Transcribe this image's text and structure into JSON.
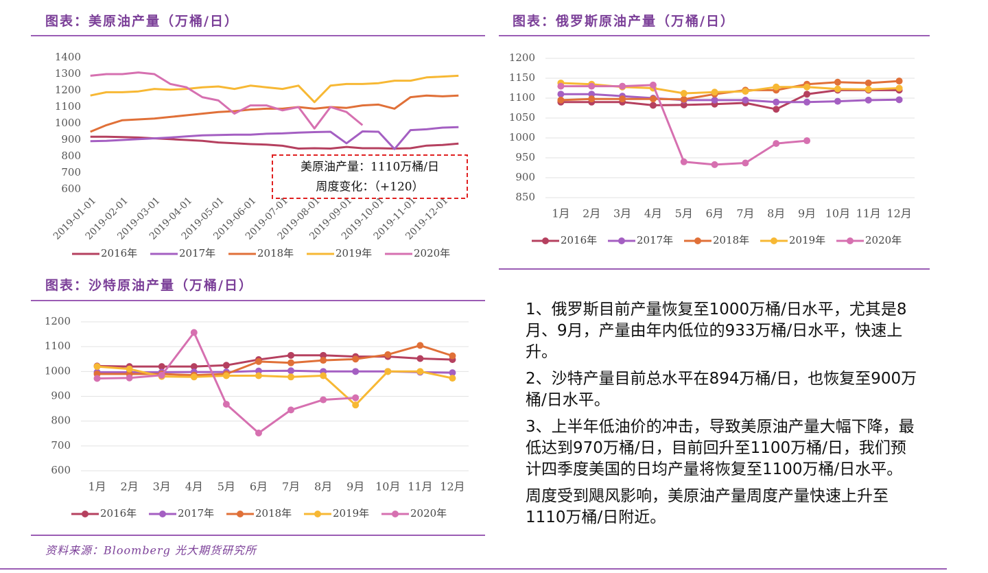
{
  "chart_data": [
    {
      "type": "line",
      "title": "图表：美原油产量（万桶/日）",
      "categories": [
        "2019-01-01",
        null,
        "2019-02-01",
        null,
        "2019-03-01",
        null,
        "2019-04-01",
        null,
        "2019-05-01",
        null,
        "2019-06-01",
        null,
        "2019-07-01",
        null,
        "2019-08-01",
        null,
        "2019-09-01",
        null,
        "2019-10-01",
        null,
        "2019-11-01",
        null,
        "2019-12-01",
        null
      ],
      "series": [
        {
          "name": "2016年",
          "color": "#b5405f",
          "values": [
            920,
            920,
            918,
            915,
            910,
            905,
            900,
            895,
            885,
            880,
            875,
            872,
            865,
            848,
            850,
            848,
            858,
            850,
            850,
            848,
            850,
            866,
            870,
            878
          ]
        },
        {
          "name": "2017年",
          "color": "#a45fc2",
          "values": [
            893,
            895,
            900,
            905,
            910,
            915,
            922,
            928,
            930,
            932,
            932,
            938,
            940,
            945,
            948,
            950,
            880,
            952,
            950,
            845,
            960,
            965,
            975,
            978
          ]
        },
        {
          "name": "2018年",
          "color": "#e07038",
          "values": [
            950,
            990,
            1020,
            1025,
            1030,
            1040,
            1050,
            1060,
            1070,
            1075,
            1085,
            1090,
            1090,
            1100,
            1090,
            1100,
            1095,
            1110,
            1115,
            1090,
            1160,
            1170,
            1165,
            1170
          ]
        },
        {
          "name": "2019年",
          "color": "#f7b834",
          "values": [
            1170,
            1190,
            1190,
            1195,
            1210,
            1205,
            1210,
            1220,
            1225,
            1210,
            1230,
            1220,
            1210,
            1230,
            1130,
            1230,
            1240,
            1240,
            1245,
            1260,
            1260,
            1280,
            1285,
            1290
          ]
        },
        {
          "name": "2020年",
          "color": "#d670b0",
          "values": [
            1290,
            1300,
            1300,
            1310,
            1300,
            1240,
            1220,
            1160,
            1140,
            1060,
            1110,
            1110,
            1080,
            1100,
            970,
            1100,
            1070,
            990,
            null,
            null,
            null,
            null,
            null,
            null
          ]
        }
      ],
      "ylim": [
        600,
        1400
      ],
      "yticks": [
        600,
        700,
        800,
        900,
        1000,
        1100,
        1200,
        1300,
        1400
      ],
      "grid": false,
      "markers": false,
      "legend": "bottom",
      "annotations": [
        "美原油产量：1110万桶/日",
        "周度变化：（+120）"
      ]
    },
    {
      "type": "line",
      "title": "图表：俄罗斯原油产量（万桶/日）",
      "categories": [
        "1月",
        "2月",
        "3月",
        "4月",
        "5月",
        "6月",
        "7月",
        "8月",
        "9月",
        "10月",
        "11月",
        "12月"
      ],
      "series": [
        {
          "name": "2016年",
          "color": "#b5405f",
          "values": [
            1090,
            1090,
            1090,
            1082,
            1083,
            1085,
            1088,
            1072,
            1110,
            1120,
            1120,
            1120
          ]
        },
        {
          "name": "2017年",
          "color": "#a45fc2",
          "values": [
            1110,
            1110,
            1105,
            1100,
            1095,
            1095,
            1095,
            1090,
            1090,
            1092,
            1095,
            1096
          ]
        },
        {
          "name": "2018年",
          "color": "#e07038",
          "values": [
            1095,
            1098,
            1098,
            1098,
            1097,
            1110,
            1120,
            1120,
            1135,
            1140,
            1138,
            1143
          ]
        },
        {
          "name": "2019年",
          "color": "#f7b834",
          "values": [
            1138,
            1135,
            1128,
            1125,
            1112,
            1115,
            1117,
            1128,
            1128,
            1123,
            1122,
            1125
          ]
        },
        {
          "name": "2020年",
          "color": "#d670b0",
          "values": [
            1130,
            1130,
            1130,
            1133,
            940,
            933,
            937,
            986,
            993,
            null,
            null,
            null
          ]
        }
      ],
      "ylim": [
        850,
        1200
      ],
      "yticks": [
        850,
        900,
        950,
        1000,
        1050,
        1100,
        1150,
        1200
      ],
      "grid": true,
      "markers": true,
      "legend": "bottom"
    },
    {
      "type": "line",
      "title": "图表：沙特原油产量（万桶/日）",
      "categories": [
        "1月",
        "2月",
        "3月",
        "4月",
        "5月",
        "6月",
        "7月",
        "8月",
        "9月",
        "10月",
        "11月",
        "12月"
      ],
      "series": [
        {
          "name": "2016年",
          "color": "#b5405f",
          "values": [
            1022,
            1020,
            1020,
            1020,
            1025,
            1048,
            1065,
            1065,
            1060,
            1060,
            1052,
            1048
          ]
        },
        {
          "name": "2017年",
          "color": "#a45fc2",
          "values": [
            997,
            997,
            997,
            998,
            998,
            1002,
            1003,
            1000,
            1000,
            1000,
            997,
            995
          ]
        },
        {
          "name": "2018年",
          "color": "#e07038",
          "values": [
            990,
            990,
            990,
            985,
            990,
            1040,
            1035,
            1045,
            1050,
            1068,
            1105,
            1063
          ]
        },
        {
          "name": "2019年",
          "color": "#f7b834",
          "values": [
            1020,
            1010,
            980,
            978,
            983,
            983,
            978,
            983,
            865,
            1000,
            1000,
            973
          ]
        },
        {
          "name": "2020年",
          "color": "#d670b0",
          "values": [
            972,
            974,
            985,
            1157,
            868,
            752,
            845,
            886,
            894,
            null,
            null,
            null
          ]
        }
      ],
      "ylim": [
        600,
        1200
      ],
      "yticks": [
        600,
        700,
        800,
        900,
        1000,
        1100,
        1200
      ],
      "grid": true,
      "markers": true,
      "legend": "bottom"
    }
  ],
  "notes": [
    "1、俄罗斯目前产量恢复至1000万桶/日水平，尤其是8月、9月，产量由年内低位的933万桶/日水平，快速上升。",
    "2、沙特产量目前总水平在894万桶/日，也恢复至900万桶/日水平。",
    "3、上半年低油价的冲击，导致美原油产量大幅下降，最低达到970万桶/日，目前回升至1100万桶/日，我们预计四季度美国的日均产量将恢复至1100万桶/日水平。",
    "周度受到飓风影响，美原油产量周度产量快速上升至1110万桶/日附近。"
  ],
  "source": "资料来源：Bloomberg 光大期货研究所"
}
